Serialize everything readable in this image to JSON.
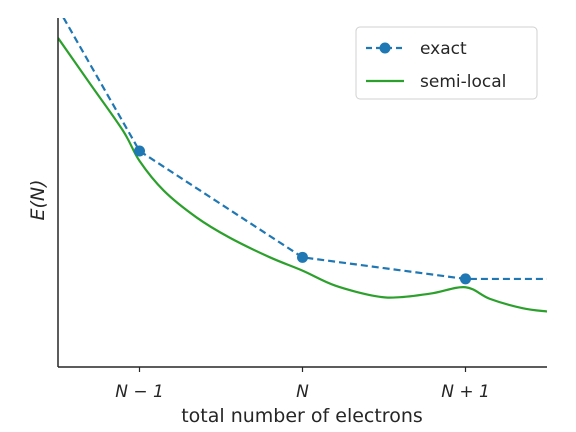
{
  "chart_data": {
    "type": "line",
    "xlabel": "total number of electrons",
    "ylabel": "E(N)",
    "xlim": [
      -0.5,
      2.5
    ],
    "ylim": [
      0.0,
      1.05
    ],
    "x_ticks": [
      {
        "value": 0,
        "label": "N − 1"
      },
      {
        "value": 1,
        "label": "N"
      },
      {
        "value": 2,
        "label": "N + 1"
      }
    ],
    "grid": false,
    "legend_position": "top-right",
    "series": [
      {
        "name": "exact",
        "style": "dashed",
        "marker": "circle",
        "color": "#1f77b4",
        "x": [
          -0.5,
          0,
          1,
          2,
          2.5
        ],
        "y": [
          1.08,
          0.65,
          0.33,
          0.265,
          0.265
        ],
        "marker_points": [
          [
            0,
            0.65
          ],
          [
            1,
            0.33
          ],
          [
            2,
            0.265
          ]
        ]
      },
      {
        "name": "semi-local",
        "style": "solid",
        "marker": "none",
        "color": "#2ca02c",
        "x": [
          -0.5,
          -0.3,
          -0.1,
          0,
          0.15,
          0.35,
          0.55,
          0.8,
          1,
          1.2,
          1.45,
          1.6,
          1.8,
          2,
          2.15,
          2.35,
          2.5
        ],
        "y": [
          0.99,
          0.85,
          0.71,
          0.62,
          0.53,
          0.45,
          0.39,
          0.33,
          0.29,
          0.245,
          0.213,
          0.21,
          0.222,
          0.24,
          0.205,
          0.177,
          0.167
        ]
      }
    ]
  }
}
